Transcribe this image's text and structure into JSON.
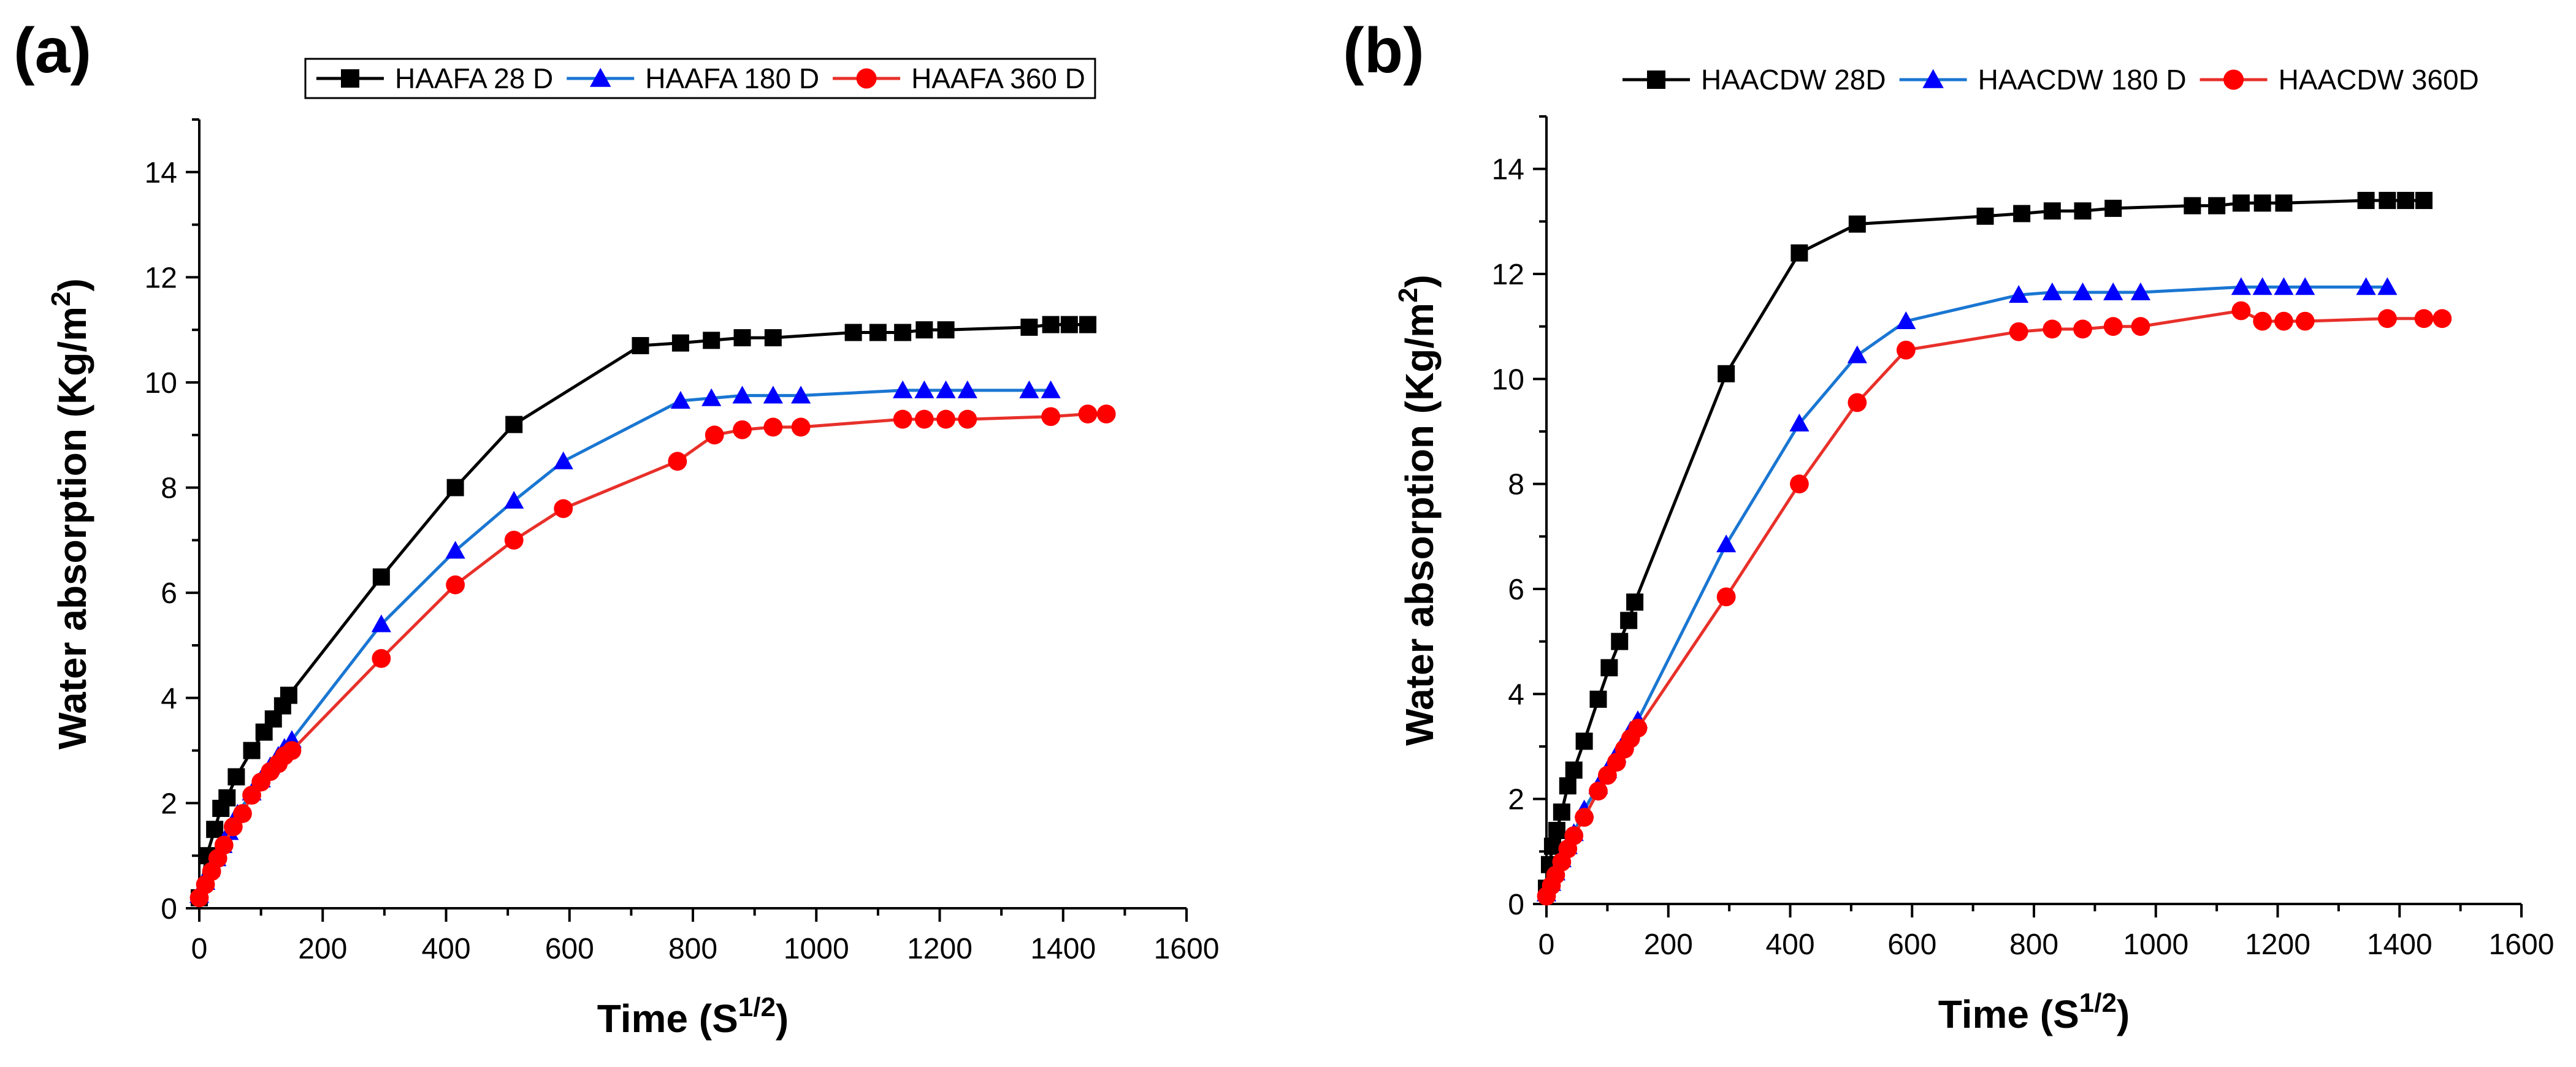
{
  "chart_data": [
    {
      "panel_label": "(a)",
      "type": "line",
      "xlabel": "Time (S",
      "xlabel_sup": "1/2",
      "xlabel_end": ")",
      "ylabel": "Water absorption (Kg/m",
      "ylabel_sup": "2",
      "ylabel_end": ")",
      "xlim": [
        0,
        1600
      ],
      "ylim": [
        0,
        15
      ],
      "xticks": [
        "0",
        "200",
        "400",
        "600",
        "800",
        "1000",
        "1200",
        "1400",
        "1600"
      ],
      "yticks": [
        "0",
        "2",
        "4",
        "6",
        "8",
        "10",
        "12",
        "14"
      ],
      "legend_position": "top",
      "legend_boxed": true,
      "series": [
        {
          "name": "HAAFA 28 D",
          "color": "#000000",
          "marker": "square",
          "points": [
            [
              0,
              0.2
            ],
            [
              12,
              1.0
            ],
            [
              25,
              1.5
            ],
            [
              35,
              1.9
            ],
            [
              45,
              2.1
            ],
            [
              60,
              2.5
            ],
            [
              85,
              3.0
            ],
            [
              105,
              3.35
            ],
            [
              120,
              3.6
            ],
            [
              135,
              3.85
            ],
            [
              145,
              4.05
            ],
            [
              295,
              6.3
            ],
            [
              415,
              8.0
            ],
            [
              510,
              9.2
            ],
            [
              715,
              10.7
            ],
            [
              780,
              10.75
            ],
            [
              830,
              10.8
            ],
            [
              880,
              10.85
            ],
            [
              930,
              10.85
            ],
            [
              1060,
              10.95
            ],
            [
              1100,
              10.95
            ],
            [
              1140,
              10.95
            ],
            [
              1175,
              11.0
            ],
            [
              1210,
              11.0
            ],
            [
              1345,
              11.05
            ],
            [
              1380,
              11.1
            ],
            [
              1410,
              11.1
            ],
            [
              1440,
              11.1
            ]
          ]
        },
        {
          "name": "HAAFA  180 D",
          "color": "#0000ff",
          "line_color": "#1a76d2",
          "marker": "triangle",
          "points": [
            [
              0,
              0.25
            ],
            [
              10,
              0.5
            ],
            [
              18,
              0.75
            ],
            [
              28,
              0.95
            ],
            [
              38,
              1.2
            ],
            [
              48,
              1.45
            ],
            [
              62,
              1.8
            ],
            [
              85,
              2.2
            ],
            [
              100,
              2.45
            ],
            [
              115,
              2.7
            ],
            [
              128,
              2.9
            ],
            [
              138,
              3.05
            ],
            [
              150,
              3.2
            ],
            [
              295,
              5.4
            ],
            [
              415,
              6.8
            ],
            [
              510,
              7.75
            ],
            [
              590,
              8.5
            ],
            [
              780,
              9.65
            ],
            [
              830,
              9.7
            ],
            [
              880,
              9.75
            ],
            [
              930,
              9.75
            ],
            [
              975,
              9.75
            ],
            [
              1140,
              9.85
            ],
            [
              1175,
              9.85
            ],
            [
              1210,
              9.85
            ],
            [
              1245,
              9.85
            ],
            [
              1345,
              9.85
            ],
            [
              1380,
              9.85
            ]
          ]
        },
        {
          "name": "HAAFA 360 D",
          "color": "#ff0000",
          "line_color": "#e8302a",
          "marker": "circle",
          "points": [
            [
              0,
              0.2
            ],
            [
              10,
              0.45
            ],
            [
              20,
              0.7
            ],
            [
              30,
              0.95
            ],
            [
              40,
              1.2
            ],
            [
              55,
              1.55
            ],
            [
              70,
              1.8
            ],
            [
              85,
              2.15
            ],
            [
              100,
              2.4
            ],
            [
              115,
              2.6
            ],
            [
              128,
              2.75
            ],
            [
              138,
              2.9
            ],
            [
              150,
              3.0
            ],
            [
              295,
              4.75
            ],
            [
              415,
              6.15
            ],
            [
              510,
              7.0
            ],
            [
              590,
              7.6
            ],
            [
              775,
              8.5
            ],
            [
              835,
              9.0
            ],
            [
              880,
              9.1
            ],
            [
              930,
              9.15
            ],
            [
              975,
              9.15
            ],
            [
              1140,
              9.3
            ],
            [
              1175,
              9.3
            ],
            [
              1210,
              9.3
            ],
            [
              1245,
              9.3
            ],
            [
              1380,
              9.35
            ],
            [
              1440,
              9.4
            ],
            [
              1470,
              9.4
            ]
          ]
        }
      ]
    },
    {
      "panel_label": "(b)",
      "type": "line",
      "xlabel": "Time (S",
      "xlabel_sup": "1/2",
      "xlabel_end": ")",
      "ylabel": "Water absorption (Kg/m",
      "ylabel_sup": "2",
      "ylabel_end": ")",
      "xlim": [
        0,
        1600
      ],
      "ylim": [
        0,
        15
      ],
      "xticks": [
        "0",
        "200",
        "400",
        "600",
        "800",
        "1000",
        "1200",
        "1400",
        "1600"
      ],
      "yticks": [
        "0",
        "2",
        "4",
        "6",
        "8",
        "10",
        "12",
        "14"
      ],
      "legend_position": "top",
      "legend_boxed": false,
      "series": [
        {
          "name": "HAACDW 28D",
          "color": "#000000",
          "marker": "square",
          "points": [
            [
              0,
              0.3
            ],
            [
              5,
              0.75
            ],
            [
              10,
              1.1
            ],
            [
              17,
              1.4
            ],
            [
              25,
              1.75
            ],
            [
              35,
              2.25
            ],
            [
              45,
              2.55
            ],
            [
              62,
              3.1
            ],
            [
              85,
              3.9
            ],
            [
              103,
              4.5
            ],
            [
              120,
              5.0
            ],
            [
              135,
              5.4
            ],
            [
              145,
              5.75
            ],
            [
              295,
              10.1
            ],
            [
              415,
              12.4
            ],
            [
              510,
              12.95
            ],
            [
              720,
              13.1
            ],
            [
              780,
              13.15
            ],
            [
              830,
              13.2
            ],
            [
              880,
              13.2
            ],
            [
              930,
              13.25
            ],
            [
              1060,
              13.3
            ],
            [
              1100,
              13.3
            ],
            [
              1140,
              13.35
            ],
            [
              1175,
              13.35
            ],
            [
              1210,
              13.35
            ],
            [
              1345,
              13.4
            ],
            [
              1380,
              13.4
            ],
            [
              1410,
              13.4
            ],
            [
              1440,
              13.4
            ]
          ]
        },
        {
          "name": "HAACDW 180 D",
          "color": "#0000ff",
          "line_color": "#1a76d2",
          "marker": "triangle",
          "points": [
            [
              0,
              0.2
            ],
            [
              8,
              0.4
            ],
            [
              15,
              0.6
            ],
            [
              25,
              0.85
            ],
            [
              35,
              1.1
            ],
            [
              45,
              1.35
            ],
            [
              62,
              1.8
            ],
            [
              85,
              2.25
            ],
            [
              100,
              2.55
            ],
            [
              115,
              2.85
            ],
            [
              128,
              3.1
            ],
            [
              138,
              3.3
            ],
            [
              150,
              3.5
            ],
            [
              295,
              6.85
            ],
            [
              415,
              9.15
            ],
            [
              510,
              10.45
            ],
            [
              590,
              11.1
            ],
            [
              775,
              11.6
            ],
            [
              830,
              11.65
            ],
            [
              880,
              11.65
            ],
            [
              930,
              11.65
            ],
            [
              975,
              11.65
            ],
            [
              1140,
              11.75
            ],
            [
              1175,
              11.75
            ],
            [
              1210,
              11.75
            ],
            [
              1245,
              11.75
            ],
            [
              1345,
              11.75
            ],
            [
              1380,
              11.75
            ]
          ]
        },
        {
          "name": "HAACDW 360D",
          "color": "#ff0000",
          "line_color": "#e8302a",
          "marker": "circle",
          "points": [
            [
              0,
              0.15
            ],
            [
              8,
              0.35
            ],
            [
              15,
              0.55
            ],
            [
              25,
              0.8
            ],
            [
              35,
              1.05
            ],
            [
              45,
              1.3
            ],
            [
              62,
              1.65
            ],
            [
              85,
              2.15
            ],
            [
              100,
              2.45
            ],
            [
              115,
              2.7
            ],
            [
              128,
              2.95
            ],
            [
              138,
              3.15
            ],
            [
              150,
              3.35
            ],
            [
              295,
              5.85
            ],
            [
              415,
              8.0
            ],
            [
              510,
              9.55
            ],
            [
              590,
              10.55
            ],
            [
              775,
              10.9
            ],
            [
              830,
              10.95
            ],
            [
              880,
              10.95
            ],
            [
              930,
              11.0
            ],
            [
              975,
              11.0
            ],
            [
              1140,
              11.3
            ],
            [
              1175,
              11.1
            ],
            [
              1210,
              11.1
            ],
            [
              1245,
              11.1
            ],
            [
              1380,
              11.15
            ],
            [
              1440,
              11.15
            ],
            [
              1470,
              11.15
            ]
          ]
        }
      ]
    }
  ]
}
